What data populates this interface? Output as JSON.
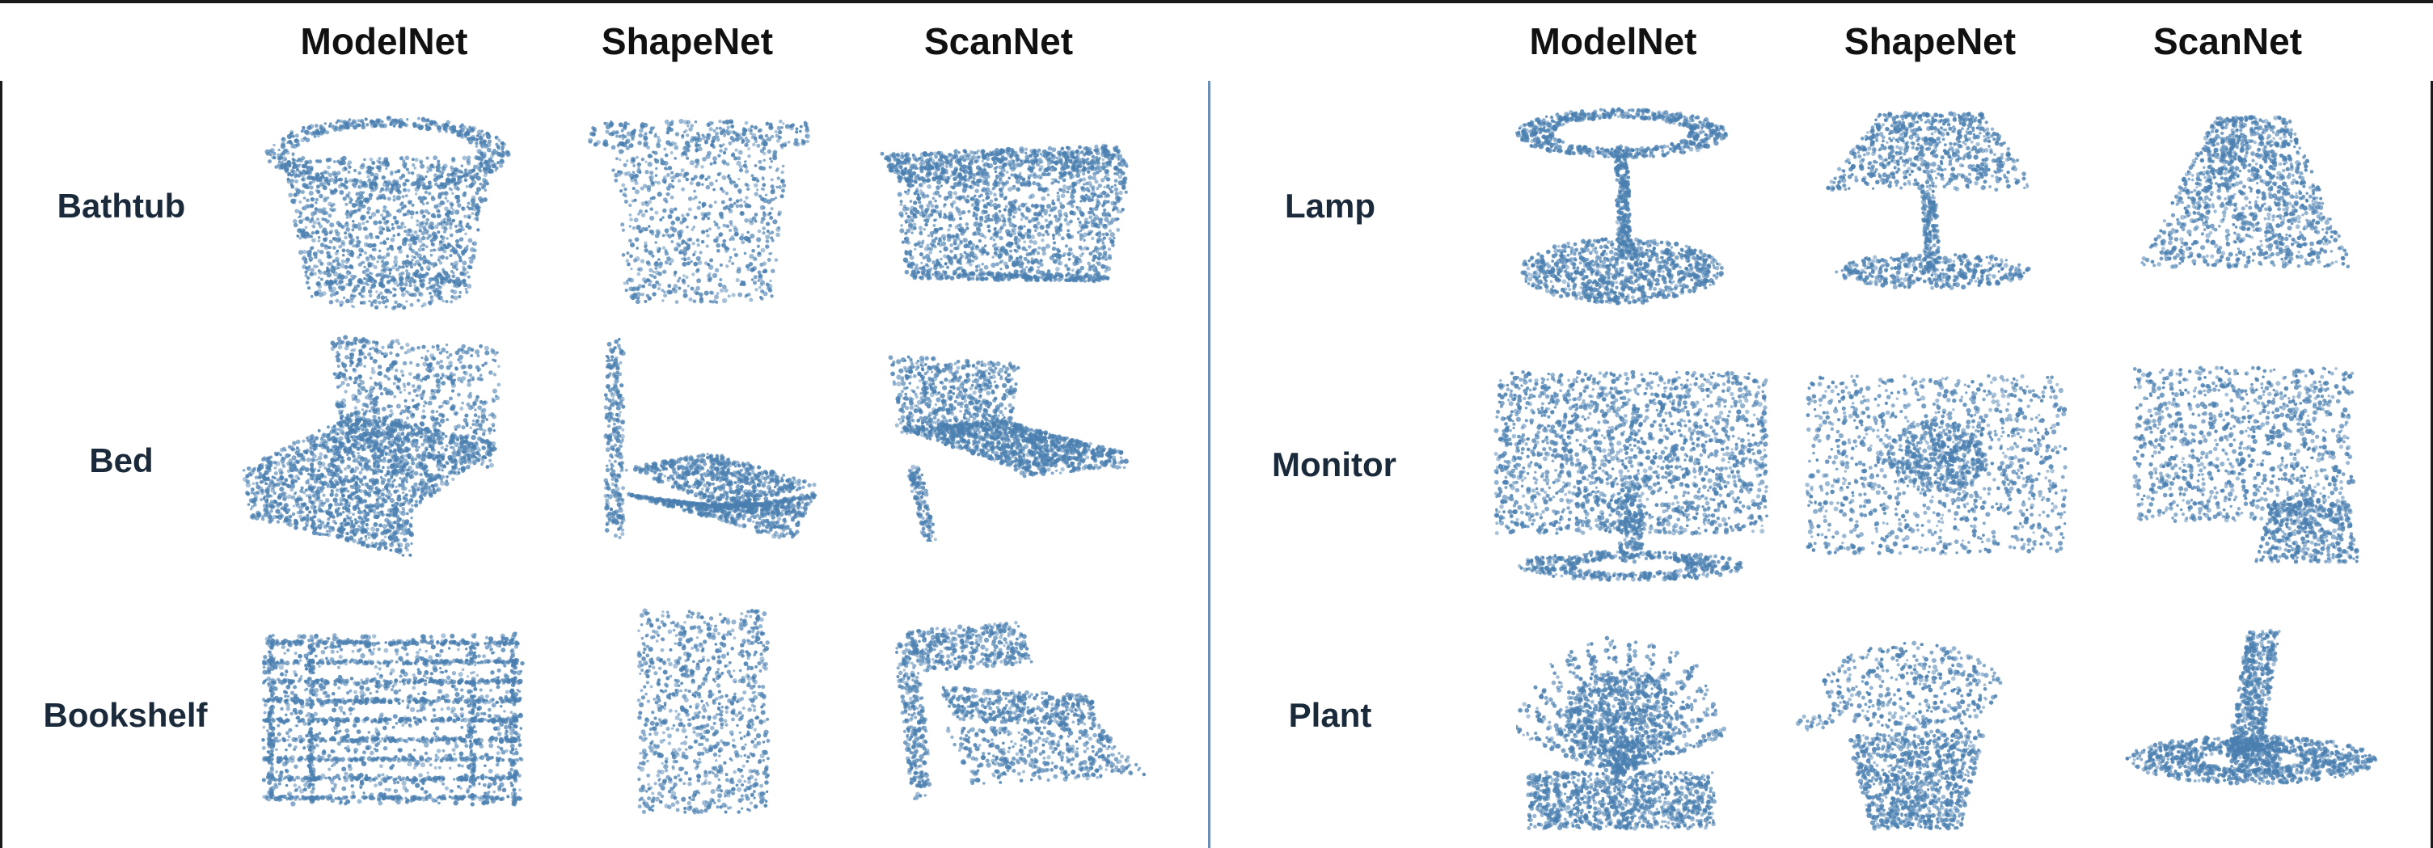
{
  "panels": [
    {
      "columns": [
        "ModelNet",
        "ShapeNet",
        "ScanNet"
      ],
      "rows": [
        "Bathtub",
        "Bed",
        "Bookshelf"
      ]
    },
    {
      "columns": [
        "ModelNet",
        "ShapeNet",
        "ScanNet"
      ],
      "rows": [
        "Lamp",
        "Monitor",
        "Plant"
      ]
    }
  ],
  "colors": {
    "point": "#4a7fb0",
    "divider": "#6c8fb8",
    "border": "#1a1a1a"
  }
}
